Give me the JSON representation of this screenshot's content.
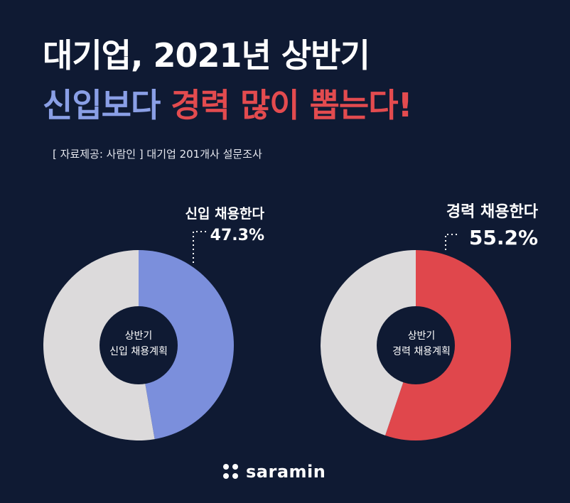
{
  "title": {
    "line1": "대기업, 2021년 상반기",
    "line2_part1": "신입보다",
    "line2_part2": "경력 많이 뽑는다!"
  },
  "source": "[ 자료제공: 사람인 ] 대기업 201개사 설문조사",
  "colors": {
    "background": "#0f1a33",
    "newcomer": "#7b8fdc",
    "experienced": "#e0474c",
    "remainder": "#dcdadb"
  },
  "chart_data": [
    {
      "type": "pie",
      "donut": true,
      "center_label": [
        "상반기",
        "신입 채용계획"
      ],
      "slices": [
        {
          "label": "신입 채용한다",
          "value": 47.3,
          "display": "47.3%"
        },
        {
          "label": "",
          "value": 52.7
        }
      ]
    },
    {
      "type": "pie",
      "donut": true,
      "center_label": [
        "상반기",
        "경력 채용계획"
      ],
      "slices": [
        {
          "label": "경력 채용한다",
          "value": 55.2,
          "display": "55.2%"
        },
        {
          "label": "",
          "value": 44.8
        }
      ]
    }
  ],
  "logo": {
    "text": "saramin",
    "icon": "four-dots-icon"
  }
}
